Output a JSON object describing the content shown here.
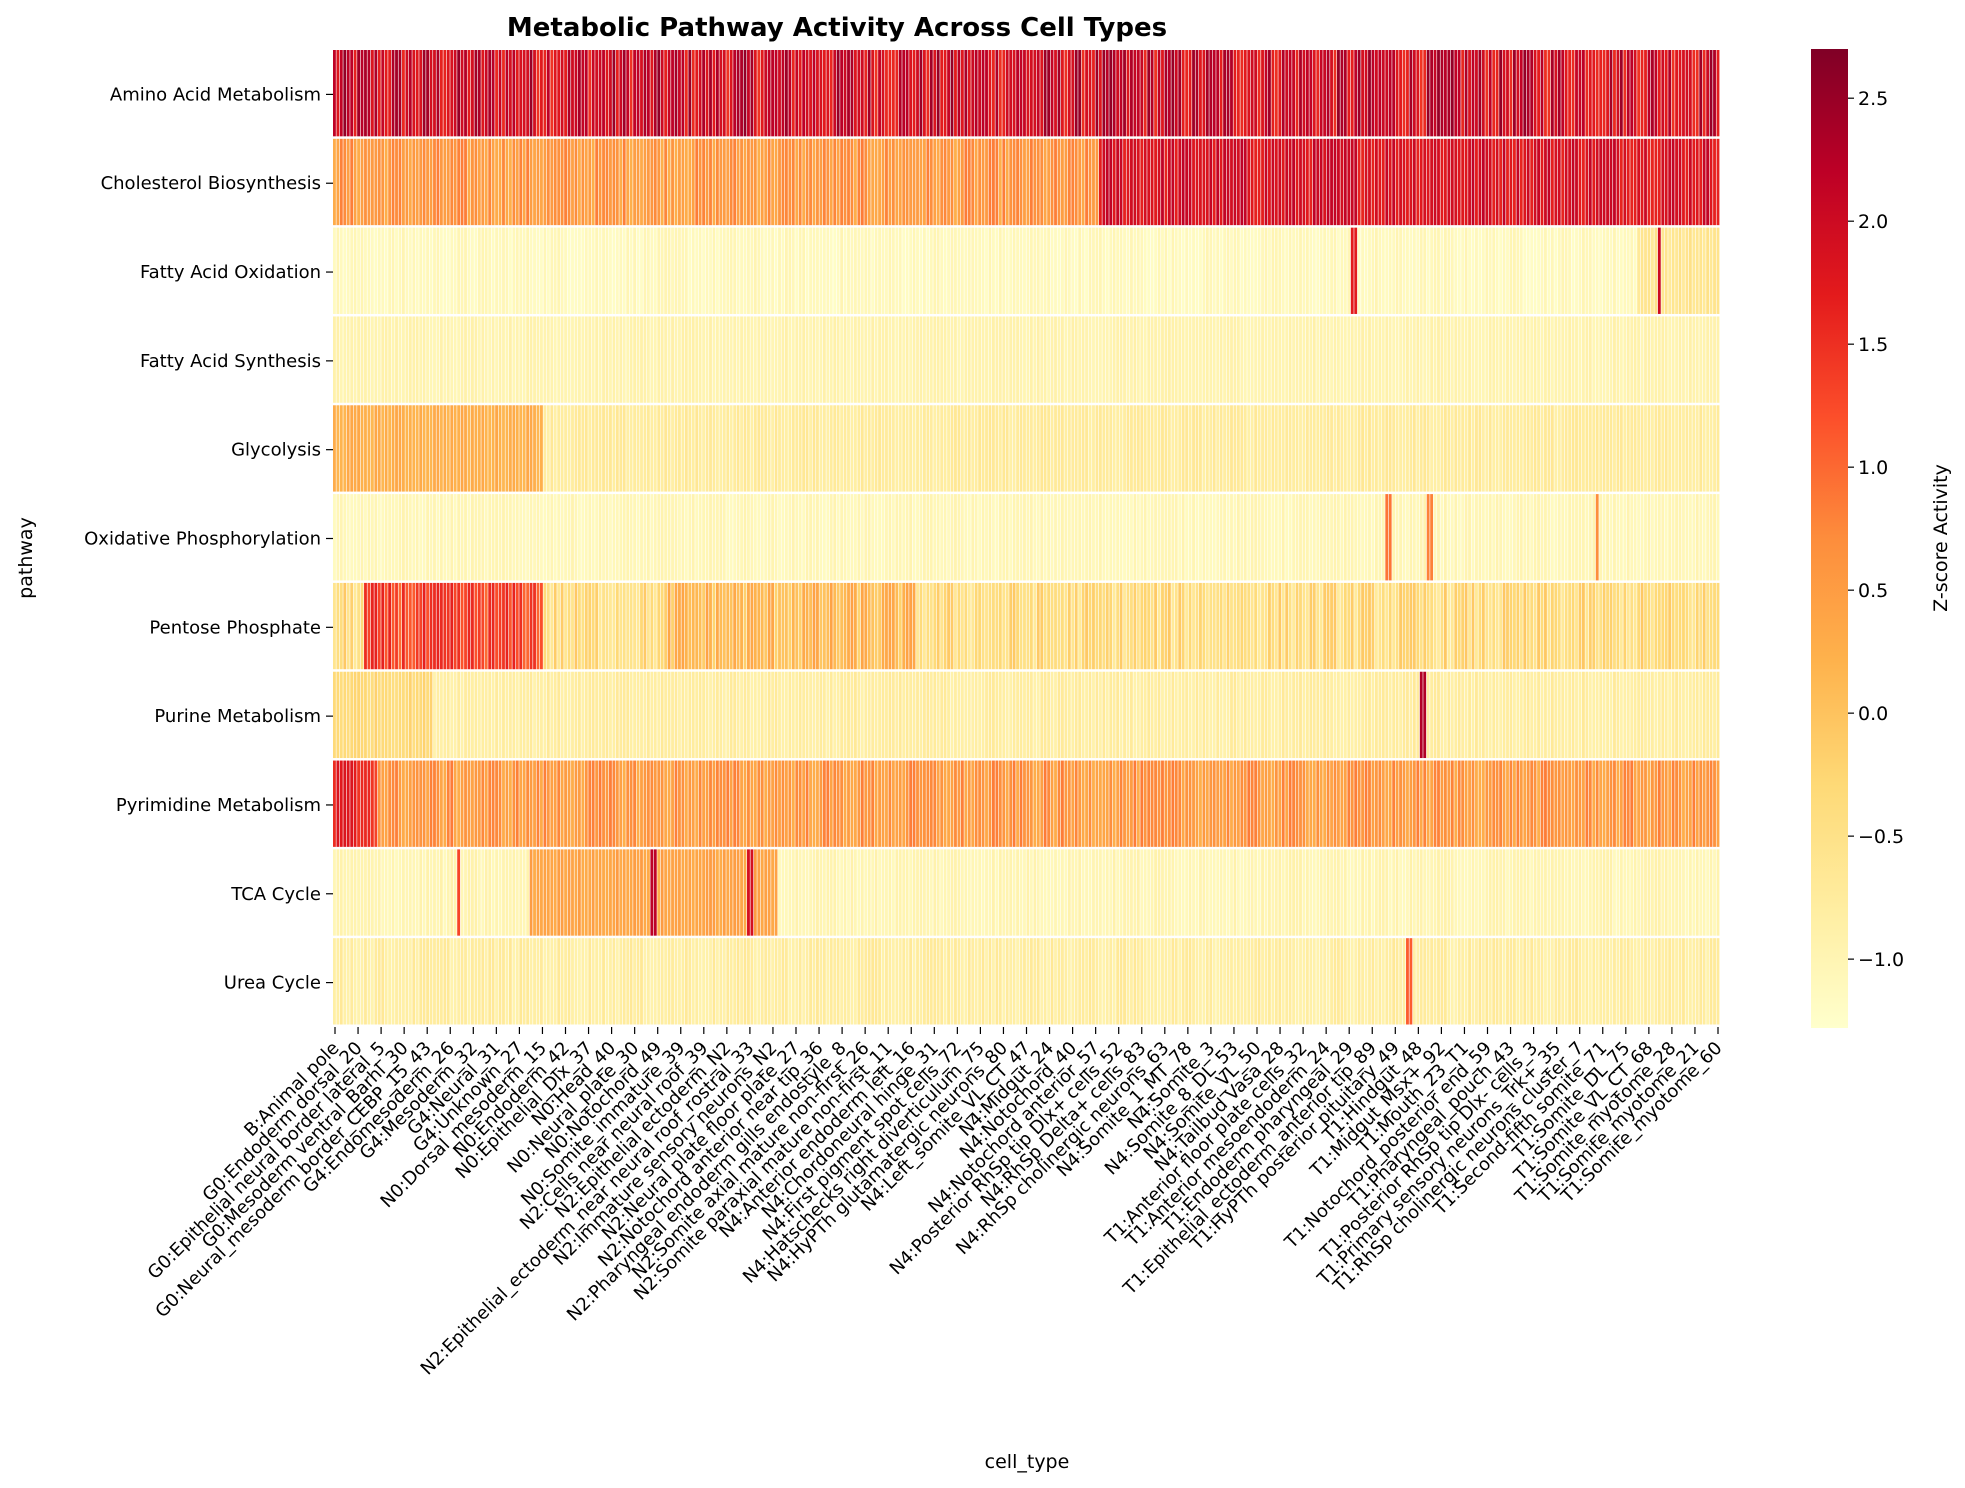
{
  "chart_data": {
    "type": "heatmap",
    "title": "Metabolic Pathway Activity Across Cell Types",
    "xlabel": "cell_type",
    "ylabel": "pathway",
    "colorbar_label": "Z-score Activity",
    "colormap": "YlOrRd",
    "colorbar_range": [
      -1.28,
      2.7
    ],
    "colorbar_ticks": [
      -1.0,
      -0.5,
      0.0,
      0.5,
      1.0,
      1.5,
      2.0,
      2.5
    ],
    "colorbar_tick_labels": [
      "−1.0",
      "−0.5",
      "0.0",
      "0.5",
      "1.0",
      "1.5",
      "2.0",
      "2.5"
    ],
    "colors": {
      "ylorrd": [
        "#ffffcc",
        "#ffeda0",
        "#fed976",
        "#feb24c",
        "#fd8d3c",
        "#fc4e2a",
        "#e31a1c",
        "#bd0026",
        "#800026"
      ],
      "cell_separator": "#ffffff"
    },
    "n_columns": 402,
    "pathways": [
      "Amino Acid Metabolism",
      "Cholesterol Biosynthesis",
      "Fatty Acid Oxidation",
      "Fatty Acid Synthesis",
      "Glycolysis",
      "Oxidative Phosphorylation",
      "Pentose Phosphate",
      "Purine Metabolism",
      "Pyrimidine Metabolism",
      "TCA Cycle",
      "Urea Cycle"
    ],
    "x_tick_labels": [
      "B:Animal pole",
      "G0:Endoderm dorsal_20",
      "G0:Epithelial neural border lateral_5",
      "G0:Mesoderm ventral_Barhl_30",
      "G0:Neural_mesoderm border_CEBP_15_43",
      "G4:Endomesoderm_26",
      "G4:Mesoderm_32",
      "G4:Neural_31",
      "G4:Unknown_27",
      "N0:Dorsal_mesoderm_15",
      "N0:Endoderm_42",
      "N0:Epithelial_Dlx_37",
      "N0:Head_40",
      "N0:Neural_plate_30",
      "N0:Notochord_49",
      "N0:Somite_immature_39",
      "N2:Cells near neural roof_39",
      "N2:Epithelial ectoderm_N2",
      "N2:Epithelial_ectoderm_near neural roof_rostral_33",
      "N2:Immature sensory neurons_N2",
      "N2:Neural plate floor plate_27",
      "N2:Notochord anterior near tip_36",
      "N2:Pharyngeal endoderm gills endostyle_8",
      "N2:Somite axial mature non-first_26",
      "N2:Somite paraxial mature non-first_11",
      "N4:Anterior endoderm left_16",
      "N4:Chordoneural hinge_31",
      "N4:First pigment spot cells_72",
      "N4:Hatschecks right diverticulum_75",
      "N4:HyPTh glutamatergic neurons_80",
      "N4:Left_somite_VL_CT_47",
      "N4:Midgut_24",
      "N4:Notochord_40",
      "N4:Notochord anterior_57",
      "N4:Posterior RhSp tip Dlx+ cells_52",
      "N4:RhSp Delta+ cells_83",
      "N4:RhSp cholinergic neurons_63",
      "N4:Somite_1_MT_78",
      "N4:Somite_3",
      "N4:Somite_8_DL_53",
      "N4:Somite_VL_50",
      "N4:Tailbud Vasa_28",
      "T1:Anterior floor plate cells_32",
      "T1:Anterior mesoendoderm_24",
      "T1:Endoderm pharyngeal_29",
      "T1:Epithelial_ectoderm_anterior tip_89",
      "T1:HyPTh posterior pituitary_49",
      "T1:Hindgut_48",
      "T1:Midgut_Msx+_92",
      "T1:Mouth_23_T1",
      "T1:Notochord_posterior end_59",
      "T1:Pharyngeal_pouch_43",
      "T1:Posterior RhSp tip Dlx- cells_3",
      "T1:Primary sensory neurons_Trk+_35",
      "T1:RhSp cholinergic neurons cluster_7",
      "T1:Second-fifth somite_71",
      "T1:Somite_DL_75",
      "T1:Somite_VL_CT_68",
      "T1:Somite_myotome_28",
      "T1:Somite_myotome_21",
      "T1:Somite_myotome_60"
    ],
    "x_tick_labels_note_removed": true,
    "row_profiles": [
      {
        "pathway": "Amino Acid Metabolism",
        "base": 2.0,
        "spread": 0.55,
        "segments": []
      },
      {
        "pathway": "Cholesterol Biosynthesis",
        "base": 0.55,
        "spread": 0.3,
        "segments": [
          {
            "from": 0.55,
            "to": 1.0,
            "base": 1.9
          }
        ]
      },
      {
        "pathway": "Fatty Acid Oxidation",
        "base": -1.1,
        "spread": 0.12,
        "segments": [
          {
            "from": 0.94,
            "to": 1.0,
            "base": -0.6
          }
        ],
        "spikes": [
          {
            "at": 0.735,
            "value": 1.7
          },
          {
            "at": 0.955,
            "value": 2.0
          }
        ]
      },
      {
        "pathway": "Fatty Acid Synthesis",
        "base": -0.95,
        "spread": 0.08,
        "segments": []
      },
      {
        "pathway": "Glycolysis",
        "base": -0.75,
        "spread": 0.12,
        "segments": [
          {
            "from": 0.0,
            "to": 0.15,
            "base": 0.25
          }
        ]
      },
      {
        "pathway": "Oxidative Phosphorylation",
        "base": -1.05,
        "spread": 0.1,
        "segments": [],
        "spikes": [
          {
            "at": 0.76,
            "value": 0.9
          },
          {
            "at": 0.79,
            "value": 0.8
          },
          {
            "at": 0.91,
            "value": 0.7
          }
        ]
      },
      {
        "pathway": "Pentose Phosphate",
        "base": -0.4,
        "spread": 0.35,
        "segments": [
          {
            "from": 0.02,
            "to": 0.15,
            "base": 1.3
          },
          {
            "from": 0.24,
            "to": 0.42,
            "base": 0.1
          }
        ]
      },
      {
        "pathway": "Purine Metabolism",
        "base": -0.8,
        "spread": 0.12,
        "segments": [
          {
            "from": 0.0,
            "to": 0.07,
            "base": -0.3
          }
        ],
        "spikes": [
          {
            "at": 0.785,
            "value": 2.3
          }
        ]
      },
      {
        "pathway": "Pyrimidine Metabolism",
        "base": 0.55,
        "spread": 0.3,
        "segments": [
          {
            "from": 0.0,
            "to": 0.03,
            "base": 1.6
          }
        ]
      },
      {
        "pathway": "TCA Cycle",
        "base": -1.0,
        "spread": 0.12,
        "segments": [
          {
            "from": 0.14,
            "to": 0.32,
            "base": 0.4
          }
        ],
        "spikes": [
          {
            "at": 0.09,
            "value": 1.3
          },
          {
            "at": 0.23,
            "value": 2.2
          },
          {
            "at": 0.3,
            "value": 1.9
          }
        ]
      },
      {
        "pathway": "Urea Cycle",
        "base": -0.8,
        "spread": 0.15,
        "segments": [],
        "spikes": [
          {
            "at": 0.775,
            "value": 1.1
          }
        ]
      }
    ]
  }
}
